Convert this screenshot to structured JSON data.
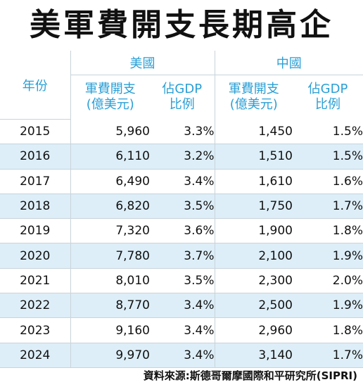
{
  "title": "美軍費開支長期高企",
  "table": {
    "year_header": "年份",
    "groups": [
      "美國",
      "中國"
    ],
    "sub_headers": [
      {
        "line1": "軍費開支",
        "line2": "(億美元)"
      },
      {
        "line1": "佔GDP",
        "line2": "比例"
      },
      {
        "line1": "軍費開支",
        "line2": "(億美元)"
      },
      {
        "line1": "佔GDP",
        "line2": "比例"
      }
    ],
    "rows": [
      {
        "year": "2015",
        "us_spend": "5,960",
        "us_gdp": "3.3%",
        "cn_spend": "1,450",
        "cn_gdp": "1.5%"
      },
      {
        "year": "2016",
        "us_spend": "6,110",
        "us_gdp": "3.2%",
        "cn_spend": "1,510",
        "cn_gdp": "1.5%"
      },
      {
        "year": "2017",
        "us_spend": "6,490",
        "us_gdp": "3.4%",
        "cn_spend": "1,610",
        "cn_gdp": "1.6%"
      },
      {
        "year": "2018",
        "us_spend": "6,820",
        "us_gdp": "3.5%",
        "cn_spend": "1,750",
        "cn_gdp": "1.7%"
      },
      {
        "year": "2019",
        "us_spend": "7,320",
        "us_gdp": "3.6%",
        "cn_spend": "1,900",
        "cn_gdp": "1.8%"
      },
      {
        "year": "2020",
        "us_spend": "7,780",
        "us_gdp": "3.7%",
        "cn_spend": "2,100",
        "cn_gdp": "1.9%"
      },
      {
        "year": "2021",
        "us_spend": "8,010",
        "us_gdp": "3.5%",
        "cn_spend": "2,300",
        "cn_gdp": "2.0%"
      },
      {
        "year": "2022",
        "us_spend": "8,770",
        "us_gdp": "3.4%",
        "cn_spend": "2,500",
        "cn_gdp": "1.9%"
      },
      {
        "year": "2023",
        "us_spend": "9,160",
        "us_gdp": "3.4%",
        "cn_spend": "2,960",
        "cn_gdp": "1.8%"
      },
      {
        "year": "2024",
        "us_spend": "9,970",
        "us_gdp": "3.4%",
        "cn_spend": "3,140",
        "cn_gdp": "1.7%"
      }
    ]
  },
  "source": "資料來源:斯德哥爾摩國際和平研究所(SIPRI)",
  "colors": {
    "header_text": "#2a9fd6",
    "row_alt_bg": "#ddeef8",
    "row_bg": "#ffffff",
    "grid_line": "#c9d3da"
  }
}
